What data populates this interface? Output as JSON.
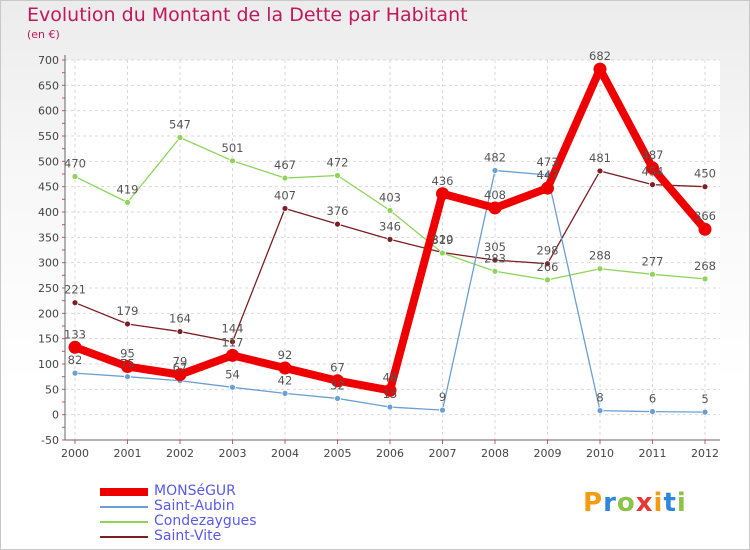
{
  "header": {
    "title": "Evolution du Montant de la Dette par Habitant",
    "subtitle": "(en €)"
  },
  "logo": {
    "text": "Proxiti",
    "letters": [
      {
        "ch": "P",
        "color": "#f39c12"
      },
      {
        "ch": "r",
        "color": "#2e86de"
      },
      {
        "ch": "o",
        "color": "#8bc34a"
      },
      {
        "ch": "x",
        "color": "#e53935"
      },
      {
        "ch": "i",
        "color": "#f39c12"
      },
      {
        "ch": "t",
        "color": "#2e86de"
      },
      {
        "ch": "i",
        "color": "#8bc34a"
      }
    ]
  },
  "chart_data": {
    "type": "line",
    "title": "Evolution du Montant de la Dette par Habitant",
    "subtitle": "(en €)",
    "x": [
      "2000",
      "2001",
      "2002",
      "2003",
      "2004",
      "2005",
      "2006",
      "2007",
      "2008",
      "2009",
      "2010",
      "2011",
      "2012"
    ],
    "ylim": [
      -50,
      700
    ],
    "yticks": [
      -50,
      0,
      50,
      100,
      150,
      200,
      250,
      300,
      350,
      400,
      450,
      500,
      550,
      600,
      650,
      700
    ],
    "grid": true,
    "legend_position": "bottom-left",
    "series": [
      {
        "name": "MONSéGUR",
        "color": "#ee0000",
        "values": [
          133,
          95,
          79,
          117,
          92,
          67,
          48,
          436,
          408,
          447,
          682,
          487,
          366
        ]
      },
      {
        "name": "Saint-Aubin",
        "color": "#6a9fd4",
        "values": [
          82,
          75,
          67,
          54,
          42,
          32,
          15,
          9,
          482,
          473,
          8,
          6,
          5
        ]
      },
      {
        "name": "Condezaygues",
        "color": "#8fd45a",
        "values": [
          470,
          419,
          547,
          501,
          467,
          472,
          403,
          319,
          283,
          266,
          288,
          277,
          268
        ]
      },
      {
        "name": "Saint-Vite",
        "color": "#7b1f23",
        "values": [
          221,
          179,
          164,
          144,
          407,
          376,
          346,
          320,
          305,
          298,
          481,
          454,
          450
        ]
      }
    ]
  }
}
